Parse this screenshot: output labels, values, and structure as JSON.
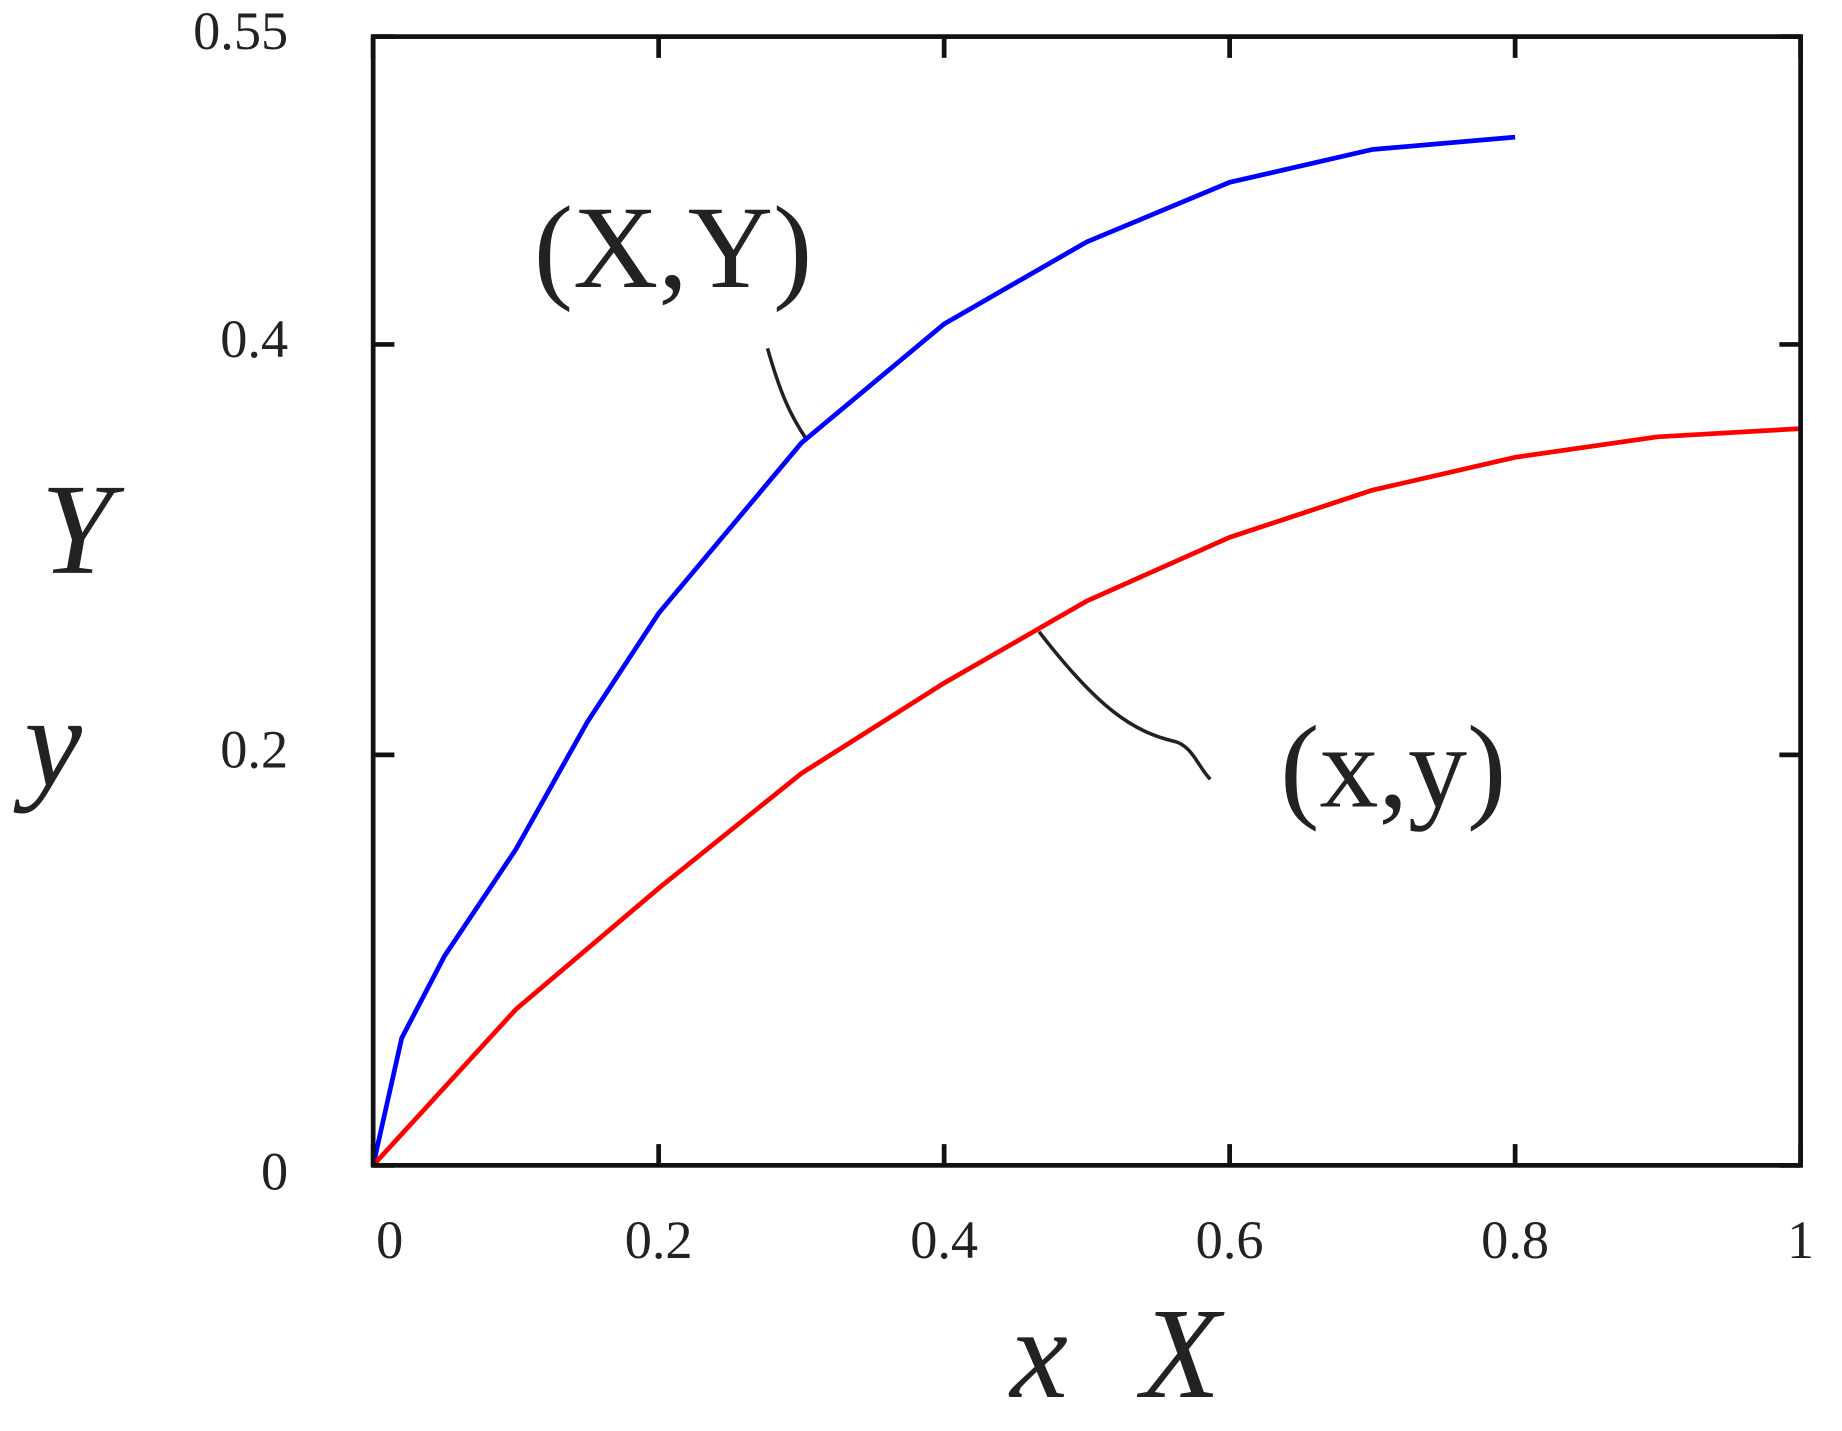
{
  "chart_data": {
    "type": "line",
    "xlabel": [
      "x",
      "X"
    ],
    "ylabel": [
      "Y",
      "y"
    ],
    "annotations": [
      "(X,Y)",
      "(x,y)"
    ],
    "xlim": [
      0,
      1
    ],
    "xticks": [
      0,
      0.2,
      0.4,
      0.6,
      0.8,
      1
    ],
    "ylim": [
      0,
      0.55
    ],
    "yticks": [
      0,
      0.2,
      0.4,
      0.55
    ],
    "series": [
      {
        "color": "#0000ff",
        "x": [
          0,
          0.02,
          0.05,
          0.1,
          0.15,
          0.2,
          0.3,
          0.4,
          0.5,
          0.6,
          0.7,
          0.8
        ],
        "values": [
          0,
          0.062,
          0.102,
          0.154,
          0.216,
          0.269,
          0.352,
          0.41,
          0.45,
          0.479,
          0.495,
          0.501
        ]
      },
      {
        "color": "#ff0000",
        "x": [
          0,
          0.1,
          0.2,
          0.3,
          0.4,
          0.5,
          0.6,
          0.7,
          0.8,
          0.9,
          1.0
        ],
        "values": [
          0,
          0.076,
          0.135,
          0.191,
          0.235,
          0.275,
          0.306,
          0.329,
          0.345,
          0.355,
          0.359
        ]
      }
    ]
  }
}
